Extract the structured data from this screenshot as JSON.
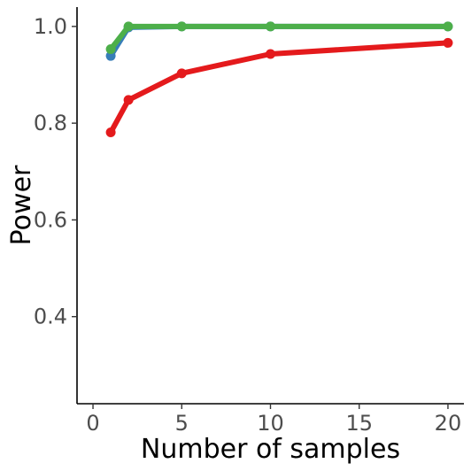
{
  "chart_data": {
    "type": "line",
    "title": "",
    "xlabel": "Number of samples",
    "ylabel": "Power",
    "xlim": [
      -0.9,
      20.9
    ],
    "ylim": [
      0.22,
      1.04
    ],
    "xticks": [
      0,
      5,
      10,
      15,
      20
    ],
    "yticks": [
      0.4,
      0.6,
      0.8,
      1.0
    ],
    "xtick_labels": [
      "0",
      "5",
      "10",
      "15",
      "20"
    ],
    "ytick_labels": [
      "0.4",
      "0.6",
      "0.8",
      "1.0"
    ],
    "grid": false,
    "legend": "none",
    "series": [
      {
        "color": "#e41a1c",
        "x": [
          1,
          2,
          5,
          10,
          20
        ],
        "y": [
          0.781,
          0.848,
          0.903,
          0.943,
          0.966
        ]
      },
      {
        "color": "#377eb8",
        "x": [
          1,
          2,
          5,
          10,
          20
        ],
        "y": [
          0.939,
          0.998,
          1.0,
          1.0,
          1.0
        ]
      },
      {
        "color": "#4daf4a",
        "x": [
          1,
          2,
          5,
          10,
          20
        ],
        "y": [
          0.953,
          1.0,
          1.0,
          1.0,
          1.0
        ]
      }
    ]
  }
}
